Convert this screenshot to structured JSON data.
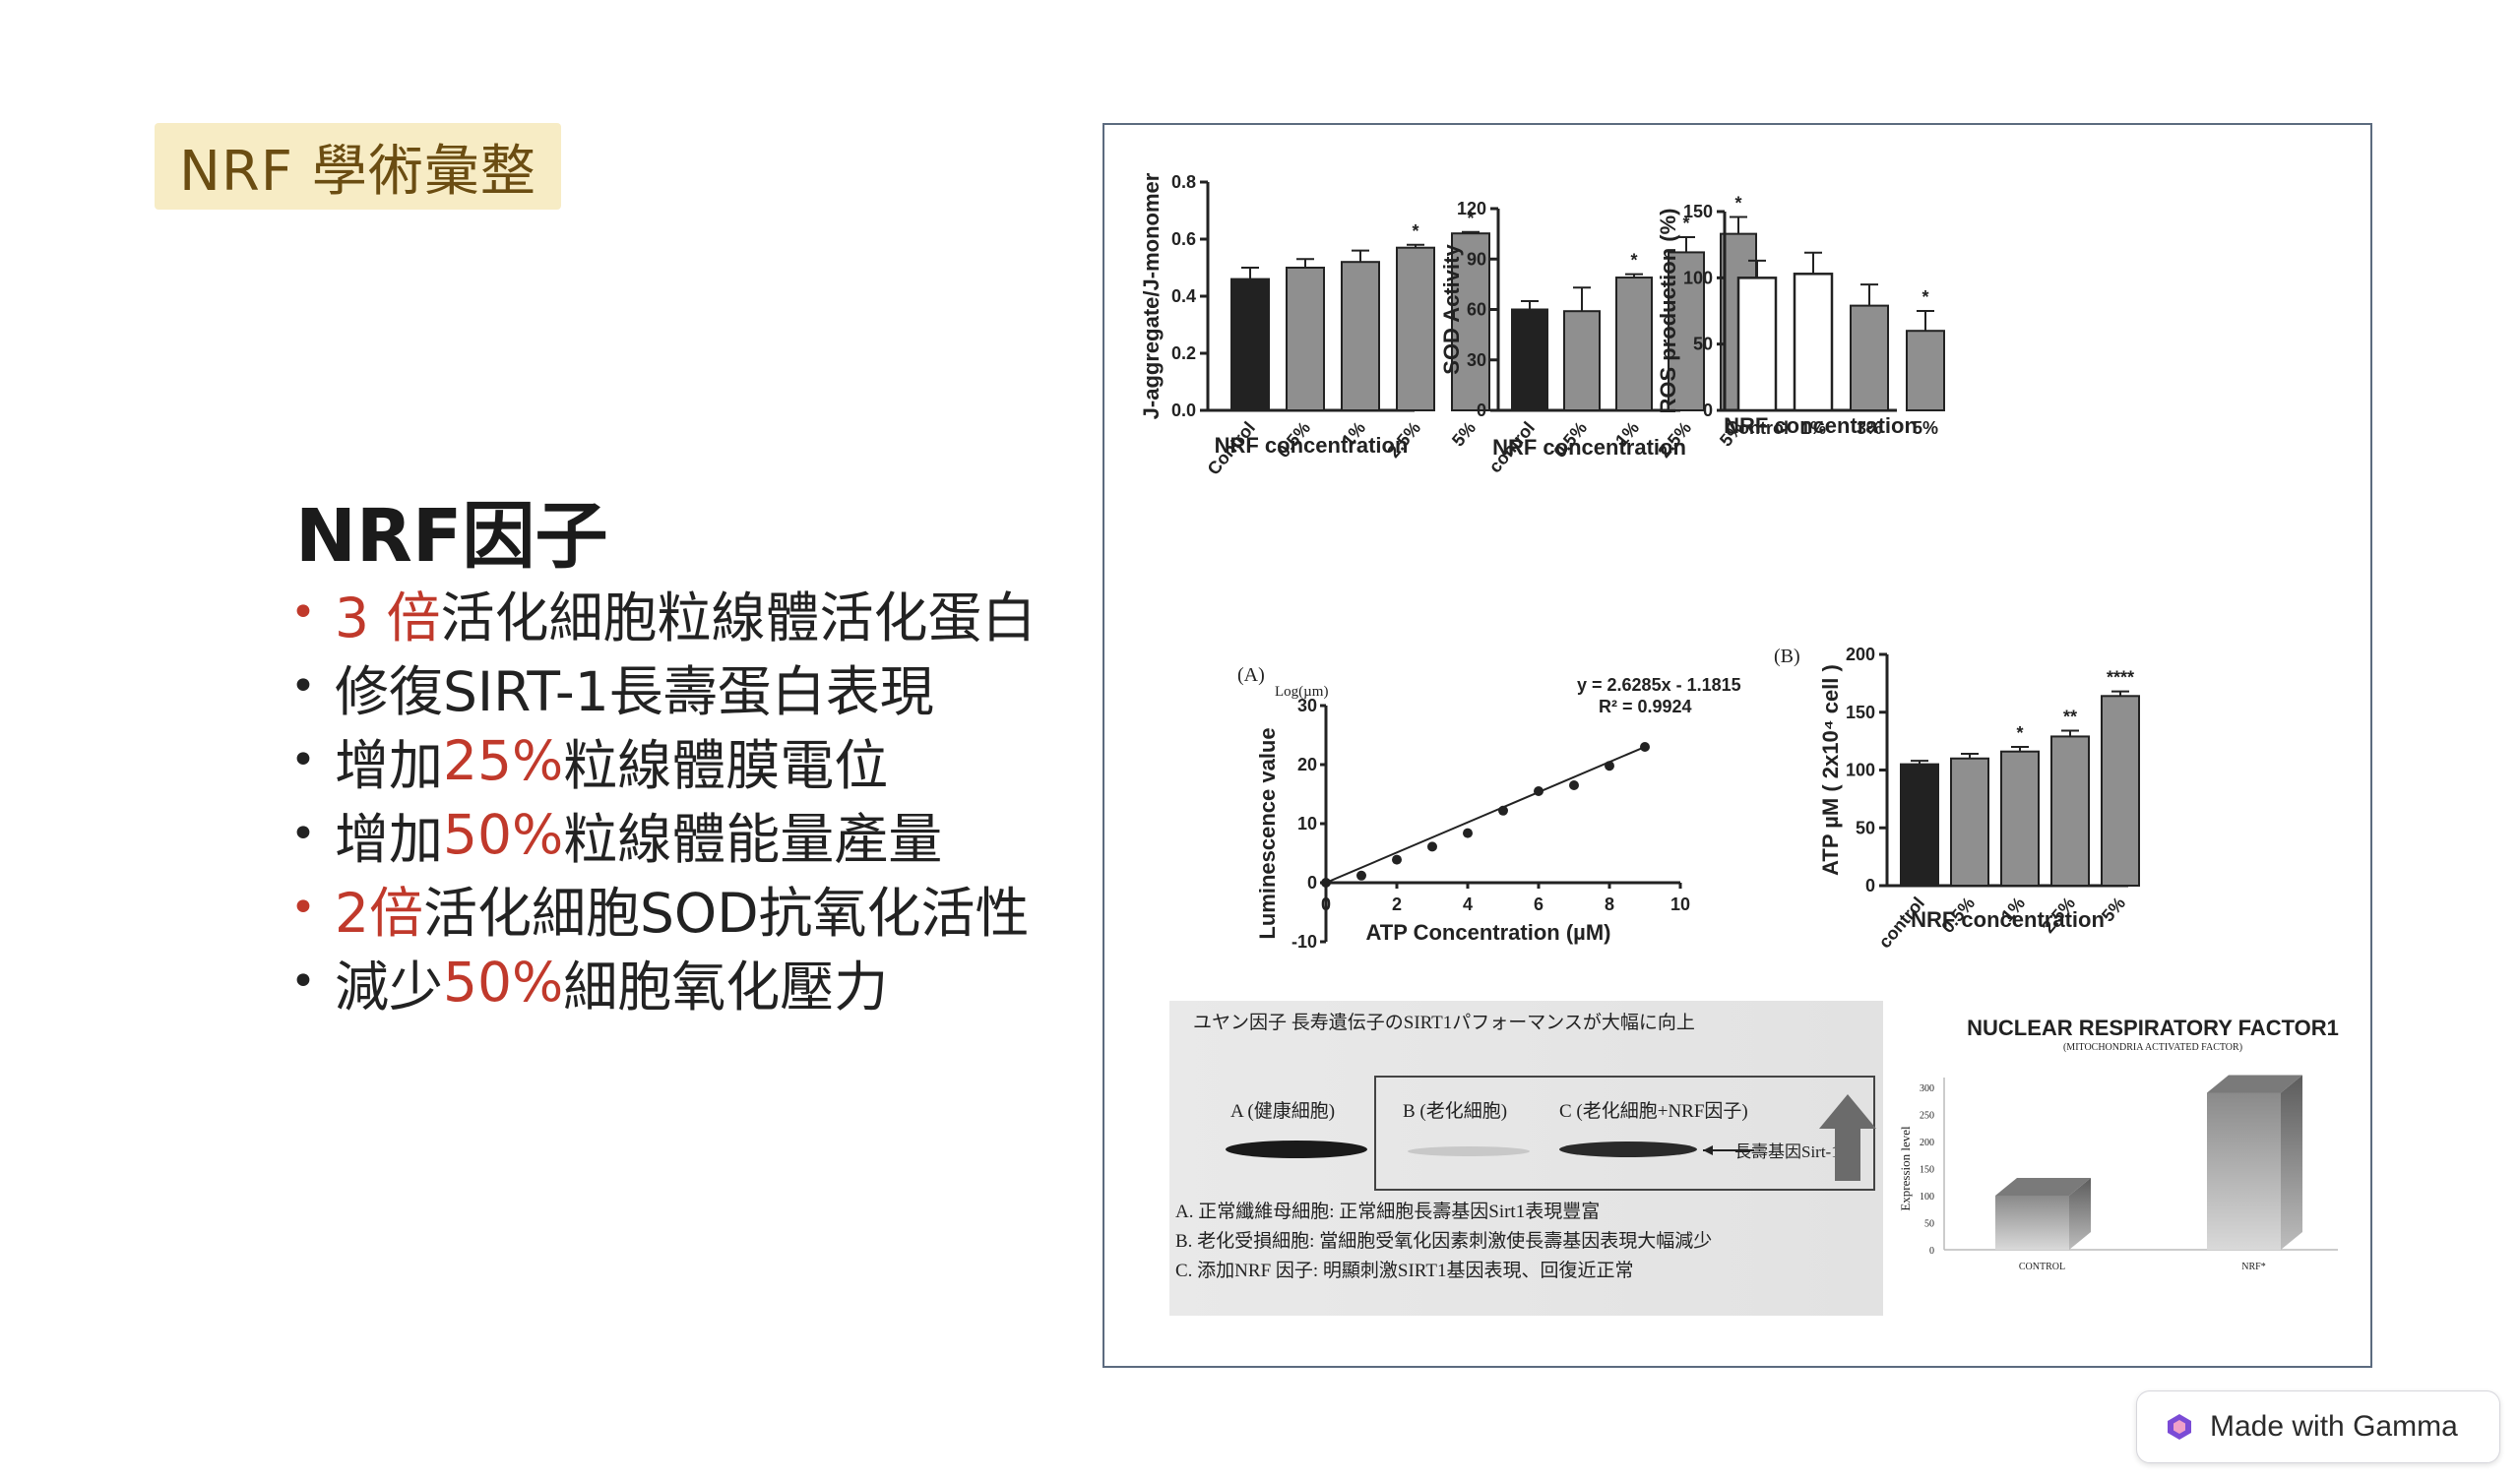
{
  "tag": "NRF 學術彙整",
  "heading": "NRF因子",
  "bullets": [
    {
      "pre": "",
      "hl": "3 倍",
      "post": "活化細胞粒線體活化蛋白",
      "red_dot": true
    },
    {
      "pre": "修復SIRT-1長壽蛋白表現",
      "hl": "",
      "post": "",
      "red_dot": false
    },
    {
      "pre": "增加",
      "hl": "25%",
      "post": "粒線體膜電位",
      "red_dot": false
    },
    {
      "pre": "增加",
      "hl": "50%",
      "post": "粒線體能量產量",
      "red_dot": false
    },
    {
      "pre": "",
      "hl": "2倍",
      "post": "活化細胞SOD抗氧化活性",
      "red_dot": true
    },
    {
      "pre": "減少",
      "hl": "50%",
      "post": "細胞氧化壓力",
      "red_dot": false
    }
  ],
  "colors": {
    "accent_red": "#c0392b",
    "tag_bg": "#f7ecc5",
    "tag_text": "#6b4d12",
    "panel_border": "#5c6b7f"
  },
  "chart_data": [
    {
      "type": "bar",
      "ylabel": "J-aggregate/J-monomer",
      "xlabel": "NRF concentration",
      "categories": [
        "Control",
        "0.5%",
        "1%",
        "2.5%",
        "5%"
      ],
      "values": [
        0.46,
        0.5,
        0.52,
        0.57,
        0.62
      ],
      "errors": [
        0.04,
        0.03,
        0.04,
        0.01,
        0.005
      ],
      "stars": [
        "",
        "",
        "",
        "*",
        "*"
      ],
      "ylim": [
        0,
        0.8
      ],
      "yticks": [
        "0.0",
        "0.2",
        "0.4",
        "0.6",
        "0.8"
      ]
    },
    {
      "type": "bar",
      "ylabel": "SOD Activity",
      "xlabel": "NRF concentration",
      "categories": [
        "control",
        "0.5%",
        "1%",
        "2.5%",
        "5%"
      ],
      "values": [
        60,
        59,
        79,
        94,
        105
      ],
      "errors": [
        5,
        14,
        2,
        9,
        10
      ],
      "stars": [
        "",
        "",
        "*",
        "*",
        "*"
      ],
      "ylim": [
        0,
        120
      ],
      "yticks": [
        "0",
        "30",
        "60",
        "90",
        "120"
      ]
    },
    {
      "type": "bar",
      "ylabel": "ROS production (%)",
      "xlabel": "NRF concentration",
      "categories": [
        "Control",
        "1%",
        "3%",
        "5%"
      ],
      "values": [
        100,
        103,
        79,
        60
      ],
      "errors": [
        13,
        16,
        16,
        15
      ],
      "stars": [
        "",
        "",
        "",
        "*"
      ],
      "ylim": [
        0,
        150
      ],
      "yticks": [
        "0",
        "50",
        "100",
        "150"
      ]
    },
    {
      "type": "scatter",
      "panel_label": "(A)",
      "unit_label": "Log(µm)",
      "ylabel": "Luminescence value",
      "xlabel": "ATP Concentration (µM)",
      "equation": "y = 2.6285x - 1.1815",
      "r2": "R² = 0.9924",
      "x": [
        0,
        1,
        2,
        3,
        4,
        5,
        6,
        7,
        8,
        9
      ],
      "y": [
        0,
        1.2,
        3.9,
        6.1,
        8.4,
        12.2,
        15.5,
        16.5,
        19.8,
        23
      ],
      "xlim": [
        0,
        10
      ],
      "ylim": [
        -10,
        30
      ],
      "xticks": [
        "0",
        "2",
        "4",
        "6",
        "8",
        "10"
      ],
      "yticks": [
        "-10",
        "0",
        "10",
        "20",
        "30"
      ]
    },
    {
      "type": "bar",
      "panel_label": "(B)",
      "ylabel": "ATP µM ( 2x10⁴ cell )",
      "xlabel": "NRF concentration",
      "categories": [
        "control",
        "0.5%",
        "1%",
        "2.5%",
        "5%"
      ],
      "values": [
        105,
        110,
        116,
        129,
        164
      ],
      "errors": [
        3,
        4,
        4,
        5,
        4
      ],
      "stars": [
        "",
        "",
        "*",
        "**",
        "****"
      ],
      "ylim": [
        0,
        200
      ],
      "yticks": [
        "0",
        "50",
        "100",
        "150",
        "200"
      ]
    },
    {
      "type": "bar",
      "title": "NUCLEAR RESPIRATORY FACTOR1",
      "subtitle": "(MITOCHONDRIA ACTIVATED FACTOR)",
      "ylabel": "Expression level",
      "categories": [
        "CONTROL",
        "NRF*"
      ],
      "values": [
        100,
        290
      ],
      "ylim": [
        0,
        300
      ],
      "yticks": [
        "0",
        "50",
        "100",
        "150",
        "200",
        "250",
        "300"
      ]
    }
  ],
  "blot": {
    "title": "ユヤン因子 長寿遺伝子のSIRT1パフォーマンスが大幅に向上",
    "lanes": [
      "A (健康細胞)",
      "B (老化細胞)",
      "C (老化細胞+NRF因子)"
    ],
    "arrow_label": "長壽基因Sirt-1",
    "notes": [
      "A. 正常纖維母細胞: 正常細胞長壽基因Sirt1表現豐富",
      "B. 老化受損細胞: 當細胞受氧化因素刺激使長壽基因表現大幅減少",
      "C. 添加NRF 因子: 明顯刺激SIRT1基因表現、回復近正常"
    ]
  },
  "badge": "Made with Gamma"
}
